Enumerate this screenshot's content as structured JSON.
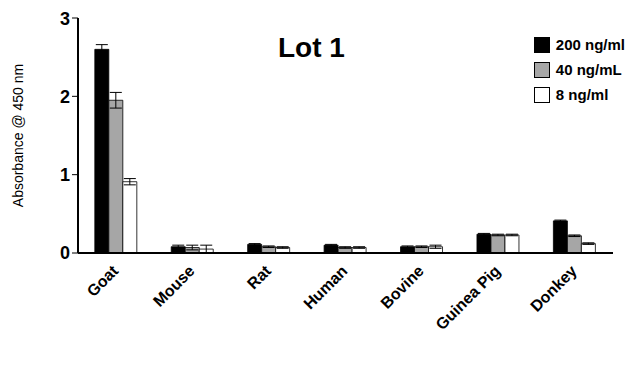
{
  "chart_data": {
    "type": "bar",
    "title": "Lot 1",
    "y_label": "Absorbance @ 450 nm",
    "categories": [
      "Goat",
      "Mouse",
      "Rat",
      "Human",
      "Bovine",
      "Guinea Pig",
      "Donkey"
    ],
    "series": [
      {
        "name": "200 ng/ml",
        "color": "#000000",
        "values": [
          2.6,
          0.08,
          0.11,
          0.1,
          0.08,
          0.24,
          0.41
        ],
        "errors": [
          0.06,
          0.02,
          0.01,
          0.01,
          0.01,
          0.01,
          0.01
        ]
      },
      {
        "name": "40 ng/mL",
        "color": "#a6a6a6",
        "values": [
          1.95,
          0.07,
          0.08,
          0.07,
          0.08,
          0.23,
          0.22
        ],
        "errors": [
          0.1,
          0.03,
          0.01,
          0.01,
          0.01,
          0.01,
          0.01
        ]
      },
      {
        "name": "8 ng/ml",
        "color": "#ffffff",
        "values": [
          0.91,
          0.05,
          0.07,
          0.07,
          0.08,
          0.23,
          0.12
        ],
        "errors": [
          0.04,
          0.05,
          0.01,
          0.01,
          0.02,
          0.01,
          0.01
        ]
      }
    ],
    "ylim": [
      0,
      3
    ],
    "yticks": [
      0,
      1,
      2,
      3
    ],
    "grid": false,
    "legend": "upper right"
  }
}
